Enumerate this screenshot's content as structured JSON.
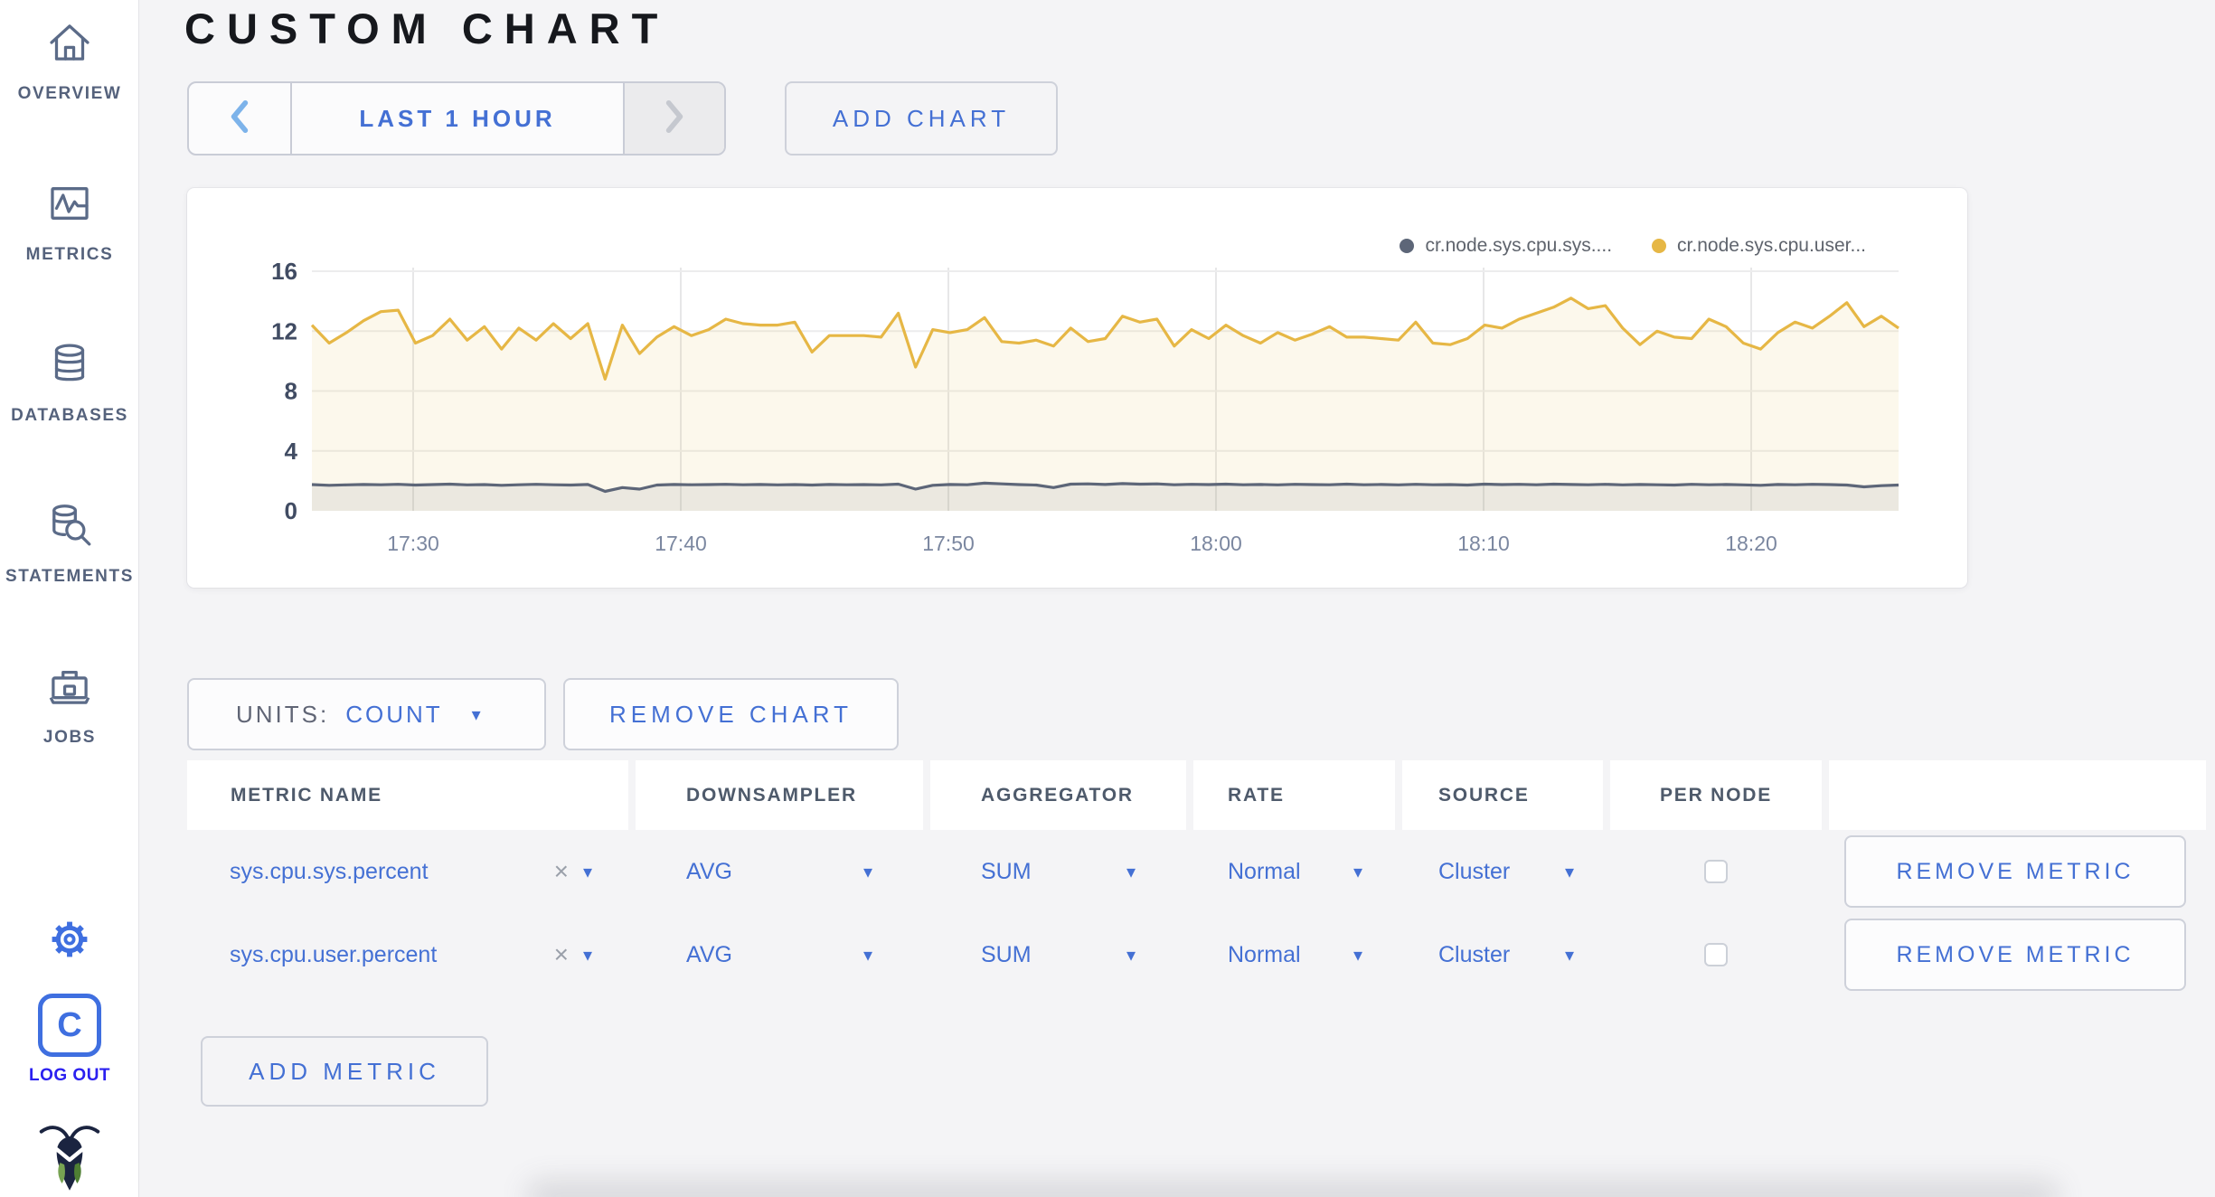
{
  "header": {
    "title": "CUSTOM CHART"
  },
  "toolbar": {
    "time_window": "LAST 1 HOUR",
    "add_chart": "ADD CHART"
  },
  "icons": {
    "caret_down": "▾",
    "remove_x": "×"
  },
  "sidebar": {
    "items": [
      {
        "label": "OVERVIEW",
        "icon": "home-icon"
      },
      {
        "label": "METRICS",
        "icon": "metrics-graph-icon"
      },
      {
        "label": "DATABASES",
        "icon": "database-icon"
      },
      {
        "label": "STATEMENTS",
        "icon": "database-search-icon"
      },
      {
        "label": "JOBS",
        "icon": "briefcase-icon"
      }
    ],
    "settings_icon": "gear-icon",
    "logout": {
      "label": "LOG OUT",
      "icon": "cockroach-c-logo"
    },
    "brand_icon": "cockroach-bug-logo"
  },
  "units_bar": {
    "units_label": "UNITS:",
    "units_value": "COUNT",
    "remove_chart": "REMOVE CHART"
  },
  "metrics_table": {
    "columns": [
      "METRIC NAME",
      "DOWNSAMPLER",
      "AGGREGATOR",
      "RATE",
      "SOURCE",
      "PER NODE",
      ""
    ],
    "rows": [
      {
        "metric_name": "sys.cpu.sys.percent",
        "downsampler": "AVG",
        "aggregator": "SUM",
        "rate": "Normal",
        "source": "Cluster",
        "per_node_checked": false
      },
      {
        "metric_name": "sys.cpu.user.percent",
        "downsampler": "AVG",
        "aggregator": "SUM",
        "rate": "Normal",
        "source": "Cluster",
        "per_node_checked": false
      }
    ],
    "remove_metric_label": "REMOVE METRIC",
    "add_metric_label": "ADD METRIC"
  },
  "chart_data": {
    "type": "area",
    "title": "",
    "xlabel": "",
    "ylabel": "",
    "ylim": [
      0,
      16
    ],
    "y_ticks": [
      0,
      4,
      8,
      12,
      16
    ],
    "x_ticks": [
      "17:30",
      "17:40",
      "17:50",
      "18:00",
      "18:10",
      "18:20"
    ],
    "x_range": [
      "17:26",
      "18:25"
    ],
    "grid": true,
    "legend_position": "top-right",
    "series": [
      {
        "name": "cr.node.sys.cpu.sys....",
        "color": "#5d6678",
        "fill": "rgba(93,102,120,0.10)",
        "values": [
          1.75,
          1.7,
          1.73,
          1.76,
          1.74,
          1.77,
          1.72,
          1.75,
          1.78,
          1.73,
          1.75,
          1.7,
          1.74,
          1.77,
          1.74,
          1.72,
          1.76,
          1.3,
          1.55,
          1.45,
          1.72,
          1.76,
          1.74,
          1.75,
          1.77,
          1.74,
          1.76,
          1.73,
          1.75,
          1.72,
          1.76,
          1.74,
          1.75,
          1.73,
          1.78,
          1.45,
          1.7,
          1.76,
          1.74,
          1.85,
          1.8,
          1.75,
          1.72,
          1.55,
          1.78,
          1.8,
          1.76,
          1.82,
          1.78,
          1.8,
          1.74,
          1.77,
          1.75,
          1.78,
          1.74,
          1.76,
          1.73,
          1.77,
          1.75,
          1.74,
          1.78,
          1.74,
          1.76,
          1.73,
          1.77,
          1.74,
          1.75,
          1.72,
          1.78,
          1.75,
          1.77,
          1.74,
          1.78,
          1.76,
          1.74,
          1.77,
          1.73,
          1.76,
          1.74,
          1.72,
          1.77,
          1.74,
          1.76,
          1.73,
          1.7,
          1.76,
          1.74,
          1.77,
          1.75,
          1.72,
          1.6,
          1.68,
          1.72
        ]
      },
      {
        "name": "cr.node.sys.cpu.user...",
        "color": "#e6b745",
        "fill": "rgba(230,183,69,0.10)",
        "values": [
          12.4,
          11.2,
          11.9,
          12.7,
          13.3,
          13.4,
          11.2,
          11.7,
          12.8,
          11.4,
          12.3,
          10.8,
          12.2,
          11.4,
          12.5,
          11.5,
          12.5,
          8.8,
          12.4,
          10.5,
          11.6,
          12.3,
          11.7,
          12.1,
          12.8,
          12.5,
          12.4,
          12.4,
          12.6,
          10.6,
          11.7,
          11.7,
          11.7,
          11.6,
          13.2,
          9.6,
          12.1,
          11.9,
          12.1,
          12.9,
          11.3,
          11.2,
          11.4,
          11.0,
          12.2,
          11.3,
          11.5,
          13.0,
          12.6,
          12.8,
          11.0,
          12.1,
          11.5,
          12.4,
          11.7,
          11.2,
          11.9,
          11.4,
          11.8,
          12.3,
          11.6,
          11.6,
          11.5,
          11.4,
          12.6,
          11.2,
          11.1,
          11.5,
          12.4,
          12.2,
          12.8,
          13.2,
          13.6,
          14.2,
          13.5,
          13.7,
          12.2,
          11.1,
          12.0,
          11.6,
          11.5,
          12.8,
          12.3,
          11.2,
          10.8,
          11.9,
          12.6,
          12.2,
          13.0,
          13.9,
          12.3,
          13.0,
          12.2
        ]
      }
    ]
  },
  "theme": {
    "page_bg": "#f4f4f6",
    "card_bg": "#ffffff",
    "accent_blue": "#4470d4",
    "logout_blue": "#2b20f0",
    "icon_slate": "#5b6b88",
    "yellow_series": "#e6b745",
    "slate_series": "#5d6678",
    "border": "#ced1da",
    "disabled_bg": "#ebebed"
  }
}
